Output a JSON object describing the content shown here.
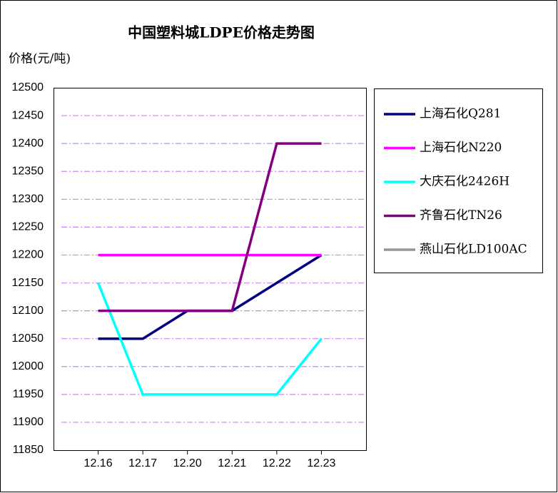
{
  "chart_data": {
    "type": "line",
    "title": "中国塑料城LDPE价格走势图",
    "y_label": "价格(元/吨)",
    "categories": [
      "12.16",
      "12.17",
      "12.20",
      "12.21",
      "12.22",
      "12.23"
    ],
    "series": [
      {
        "name": "上海石化Q281",
        "color": "#000080",
        "values": [
          12050,
          12050,
          12100,
          12100,
          12150,
          12200
        ]
      },
      {
        "name": "上海石化N220",
        "color": "#ff00ff",
        "values": [
          12200,
          12200,
          12200,
          12200,
          12200,
          12200
        ]
      },
      {
        "name": "大庆石化2426H",
        "color": "#00ffff",
        "values": [
          12150,
          11950,
          11950,
          11950,
          11950,
          12050
        ]
      },
      {
        "name": "齐鲁石化TN26",
        "color": "#800080",
        "values": [
          12100,
          12100,
          12100,
          12100,
          12400,
          12400
        ]
      },
      {
        "name": "燕山石化LD100AC",
        "color": "#969696",
        "values": [
          null,
          null,
          null,
          null,
          null,
          null
        ]
      }
    ],
    "ylim": [
      11850,
      12500
    ],
    "yticks": [
      11850,
      11900,
      11950,
      12000,
      12050,
      12100,
      12150,
      12200,
      12250,
      12300,
      12350,
      12400,
      12450,
      12500
    ],
    "grid": true,
    "legend": "right"
  }
}
